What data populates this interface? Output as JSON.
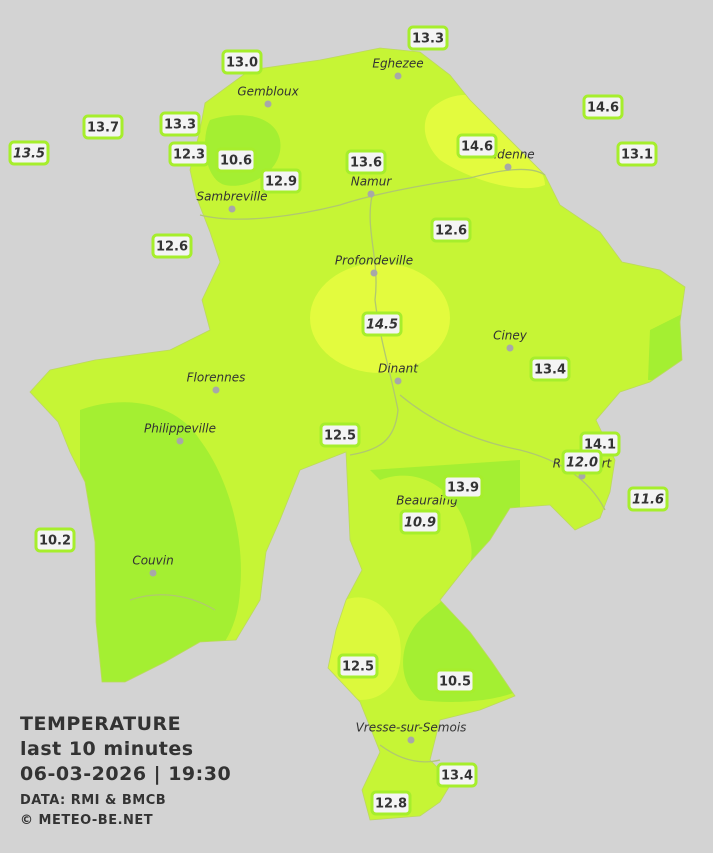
{
  "places": [
    "Eghezee",
    "Gembloux",
    "Andenne",
    "Namur",
    "Sambreville",
    "Profondeville",
    "Ciney",
    "Florennes",
    "Dinant",
    "Philippeville",
    "Beauraing",
    "Rochefort",
    "Couvin",
    "Vresse-sur-Semois"
  ],
  "stations": [
    {
      "value": "13.3",
      "italic": false
    },
    {
      "value": "13.0",
      "italic": false
    },
    {
      "value": "14.6",
      "italic": false
    },
    {
      "value": "13.7",
      "italic": false
    },
    {
      "value": "13.3",
      "italic": false
    },
    {
      "value": "13.5",
      "italic": true
    },
    {
      "value": "12.3",
      "italic": false
    },
    {
      "value": "10.6",
      "italic": false
    },
    {
      "value": "14.6",
      "italic": false
    },
    {
      "value": "13.6",
      "italic": false
    },
    {
      "value": "13.1",
      "italic": false
    },
    {
      "value": "12.9",
      "italic": false
    },
    {
      "value": "12.6",
      "italic": false
    },
    {
      "value": "12.6",
      "italic": false
    },
    {
      "value": "14.5",
      "italic": true
    },
    {
      "value": "13.4",
      "italic": false
    },
    {
      "value": "12.5",
      "italic": false
    },
    {
      "value": "14.1",
      "italic": false
    },
    {
      "value": "12.0",
      "italic": true
    },
    {
      "value": "13.9",
      "italic": false
    },
    {
      "value": "11.6",
      "italic": true
    },
    {
      "value": "10.9",
      "italic": true
    },
    {
      "value": "10.2",
      "italic": false
    },
    {
      "value": "12.5",
      "italic": false
    },
    {
      "value": "10.5",
      "italic": false
    },
    {
      "value": "13.4",
      "italic": false
    },
    {
      "value": "12.8",
      "italic": false
    }
  ],
  "legend": {
    "title": "TEMPERATURE",
    "period": "last 10 minutes",
    "datetime": "06-03-2026  |  19:30",
    "source": "DATA: RMI & BMCB",
    "credit": "© METEO-BE.NET"
  }
}
